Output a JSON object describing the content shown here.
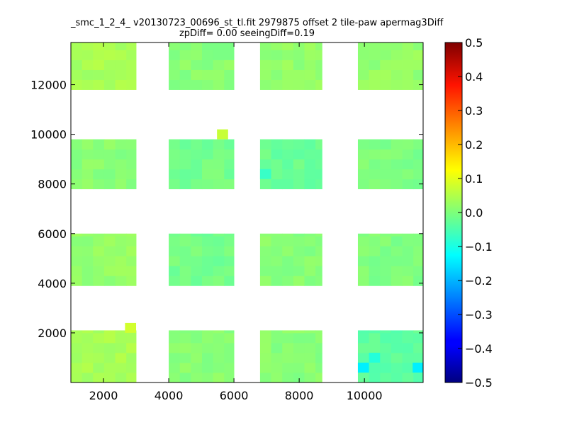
{
  "chart_data": {
    "type": "heatmap",
    "title": "_smc_1_2_4_ v20130723_00696_st_tl.fit 2979875 offset 2 tile-paw apermag3Diff",
    "subtitle": "zpDiff= 0.00 seeingDiff=0.19",
    "xlabel": "",
    "ylabel": "",
    "xlim": [
      1000,
      11800
    ],
    "ylim": [
      0,
      13700
    ],
    "xticks": [
      2000,
      4000,
      6000,
      8000,
      10000
    ],
    "yticks": [
      2000,
      4000,
      6000,
      8000,
      10000,
      12000
    ],
    "colorbar": {
      "colormap": "jet",
      "range": [
        -0.5,
        0.5
      ],
      "ticks": [
        "0.5",
        "0.4",
        "0.3",
        "0.2",
        "0.1",
        "0.0",
        "−0.1",
        "−0.2",
        "−0.3",
        "−0.4",
        "−0.5"
      ]
    },
    "cell_size": [
      340,
      400
    ],
    "tiles": [
      {
        "x": [
          1000,
          3000
        ],
        "y": [
          0,
          2100
        ],
        "value": 0.04
      },
      {
        "x": [
          4000,
          6000
        ],
        "y": [
          0,
          2100
        ],
        "value": 0.01
      },
      {
        "x": [
          6800,
          8700
        ],
        "y": [
          0,
          2100
        ],
        "value": 0.01
      },
      {
        "x": [
          9800,
          11800
        ],
        "y": [
          0,
          2100
        ],
        "value": -0.03
      },
      {
        "x": [
          1000,
          3000
        ],
        "y": [
          3900,
          6000
        ],
        "value": 0.02
      },
      {
        "x": [
          4000,
          6000
        ],
        "y": [
          3900,
          6000
        ],
        "value": -0.01
      },
      {
        "x": [
          6800,
          8700
        ],
        "y": [
          3900,
          6000
        ],
        "value": 0.01
      },
      {
        "x": [
          9800,
          11800
        ],
        "y": [
          3900,
          6000
        ],
        "value": 0.0
      },
      {
        "x": [
          1000,
          3000
        ],
        "y": [
          7800,
          9800
        ],
        "value": 0.01
      },
      {
        "x": [
          4000,
          6000
        ],
        "y": [
          7800,
          9800
        ],
        "value": -0.01
      },
      {
        "x": [
          6800,
          8700
        ],
        "y": [
          7800,
          9800
        ],
        "value": -0.02
      },
      {
        "x": [
          9800,
          11800
        ],
        "y": [
          7800,
          9800
        ],
        "value": 0.0
      },
      {
        "x": [
          1000,
          3000
        ],
        "y": [
          11800,
          13700
        ],
        "value": 0.04
      },
      {
        "x": [
          4000,
          6000
        ],
        "y": [
          11800,
          13700
        ],
        "value": 0.01
      },
      {
        "x": [
          6800,
          8700
        ],
        "y": [
          11800,
          13700
        ],
        "value": 0.02
      },
      {
        "x": [
          9800,
          11800
        ],
        "y": [
          11800,
          13700
        ],
        "value": 0.02
      }
    ],
    "highlight_cells": [
      {
        "x": 9800,
        "y": 400,
        "value": -0.14
      },
      {
        "x": 11480,
        "y": 400,
        "value": -0.14
      },
      {
        "x": 10140,
        "y": 800,
        "value": -0.09
      },
      {
        "x": 6800,
        "y": 8200,
        "value": -0.07
      },
      {
        "x": 5480,
        "y": 9800,
        "value": 0.07
      },
      {
        "x": 2660,
        "y": 2000,
        "value": 0.08
      }
    ]
  }
}
